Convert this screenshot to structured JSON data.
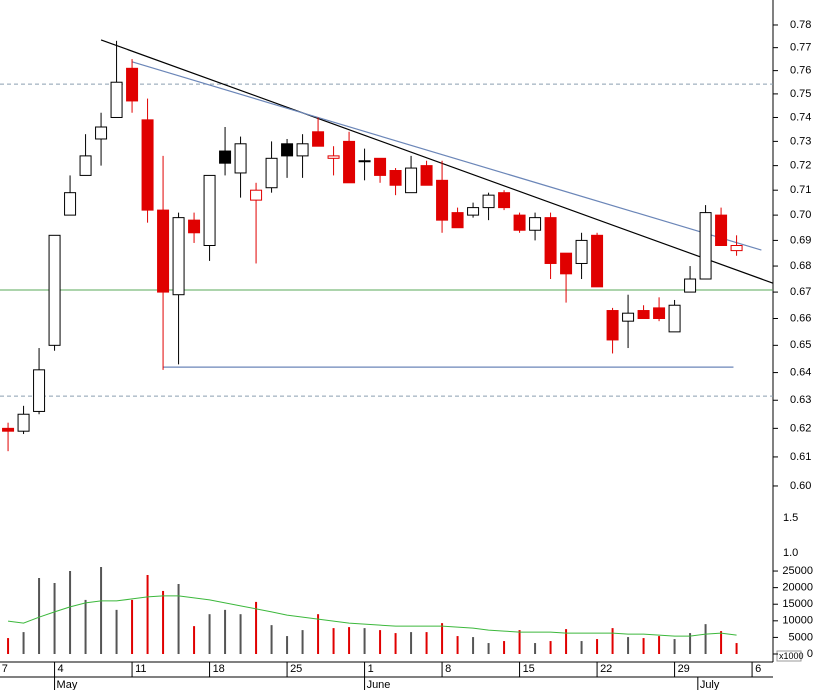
{
  "chart_data": {
    "type": "candlestick",
    "log_scale": true,
    "open": [
      0.62,
      0.619,
      0.626,
      0.65,
      0.7,
      0.716,
      0.731,
      0.74,
      0.761,
      0.739,
      0.702,
      0.669,
      0.698,
      0.688,
      0.721,
      0.717,
      0.706,
      0.711,
      0.724,
      0.724,
      0.734,
      0.724,
      0.73,
      0.722,
      0.723,
      0.718,
      0.709,
      0.72,
      0.714,
      0.701,
      0.7,
      0.703,
      0.709,
      0.7,
      0.694,
      0.699,
      0.685,
      0.681,
      0.692,
      0.663,
      0.659,
      0.663,
      0.664,
      0.655,
      0.67,
      0.675,
      0.7,
      0.686
    ],
    "high": [
      0.622,
      0.628,
      0.649,
      0.692,
      0.716,
      0.733,
      0.742,
      0.773,
      0.765,
      0.748,
      0.724,
      0.701,
      0.701,
      0.716,
      0.736,
      0.732,
      0.713,
      0.73,
      0.731,
      0.733,
      0.74,
      0.728,
      0.734,
      0.727,
      0.723,
      0.719,
      0.724,
      0.722,
      0.722,
      0.703,
      0.705,
      0.709,
      0.71,
      0.701,
      0.701,
      0.701,
      0.685,
      0.693,
      0.693,
      0.664,
      0.669,
      0.665,
      0.668,
      0.667,
      0.68,
      0.704,
      0.703,
      0.692
    ],
    "low": [
      0.612,
      0.618,
      0.625,
      0.648,
      0.7,
      0.716,
      0.72,
      0.74,
      0.742,
      0.697,
      0.641,
      0.643,
      0.689,
      0.682,
      0.716,
      0.707,
      0.681,
      0.709,
      0.715,
      0.715,
      0.728,
      0.716,
      0.713,
      0.714,
      0.713,
      0.708,
      0.709,
      0.712,
      0.693,
      0.695,
      0.699,
      0.698,
      0.702,
      0.693,
      0.69,
      0.675,
      0.666,
      0.675,
      0.672,
      0.647,
      0.649,
      0.66,
      0.659,
      0.655,
      0.67,
      0.675,
      0.688,
      0.684
    ],
    "close": [
      0.619,
      0.625,
      0.641,
      0.692,
      0.709,
      0.724,
      0.736,
      0.755,
      0.747,
      0.702,
      0.67,
      0.699,
      0.693,
      0.716,
      0.726,
      0.729,
      0.71,
      0.723,
      0.729,
      0.729,
      0.728,
      0.723,
      0.713,
      0.722,
      0.716,
      0.712,
      0.719,
      0.712,
      0.698,
      0.695,
      0.703,
      0.708,
      0.703,
      0.694,
      0.699,
      0.681,
      0.677,
      0.69,
      0.672,
      0.652,
      0.662,
      0.66,
      0.66,
      0.665,
      0.675,
      0.701,
      0.688,
      0.688
    ],
    "styles": [
      "d",
      "u",
      "u",
      "u",
      "u",
      "u",
      "u",
      "u",
      "d",
      "d",
      "d",
      "u",
      "d",
      "u",
      "k",
      "u",
      "h",
      "u",
      "k",
      "u",
      "d",
      "h",
      "d",
      "k",
      "d",
      "d",
      "u",
      "d",
      "d",
      "d",
      "u",
      "u",
      "d",
      "d",
      "u",
      "d",
      "d",
      "u",
      "d",
      "d",
      "u",
      "d",
      "d",
      "u",
      "u",
      "u",
      "d",
      "h"
    ],
    "style_colors": {
      "u": {
        "fill": "#ffffff",
        "stroke": "#000000",
        "volume": "#555555"
      },
      "d": {
        "fill": "#e00000",
        "stroke": "#e00000",
        "volume": "#e00000"
      },
      "k": {
        "fill": "#000000",
        "stroke": "#000000",
        "volume": "#555555"
      },
      "h": {
        "fill": "#ffffff",
        "stroke": "#e00000",
        "volume": "#e00000"
      }
    },
    "xlim": [
      -0.52,
      49.35
    ],
    "ylim": [
      0.59,
      0.79
    ],
    "yticks": [
      0.78,
      0.77,
      0.76,
      0.75,
      0.74,
      0.73,
      0.72,
      0.71,
      {
        "value": 0.7,
        "label": "0.70"
      },
      0.69,
      0.68,
      0.67,
      0.66,
      0.65,
      0.64,
      0.63,
      0.62,
      0.61,
      {
        "value": 0.6,
        "label": "0.60"
      }
    ],
    "extra_axis_labels": [
      "1.5",
      "1.0"
    ],
    "xticks": [
      {
        "value": -0.6,
        "label": "7"
      },
      {
        "value": 3,
        "label": "4"
      },
      {
        "value": 8,
        "label": "11"
      },
      {
        "value": 13,
        "label": "18"
      },
      {
        "value": 18,
        "label": "25"
      },
      {
        "value": 23,
        "label": "1"
      },
      {
        "value": 28,
        "label": "8"
      },
      {
        "value": 33,
        "label": "15"
      },
      {
        "value": 38,
        "label": "22"
      },
      {
        "value": 43,
        "label": "29"
      },
      {
        "value": 48,
        "label": "6"
      }
    ],
    "month_ticks": [
      {
        "value": 3,
        "label": "May"
      },
      {
        "value": 23,
        "label": "June"
      },
      {
        "value": 44.5,
        "label": "July"
      }
    ],
    "trend_lines": [
      {
        "x": [
          6,
          49.35
        ],
        "y": [
          0.7734,
          0.6734
        ],
        "color": "#000000"
      },
      {
        "x": [
          8,
          48.6
        ],
        "y": [
          0.7638,
          0.6862
        ],
        "color": "#6b86b8"
      },
      {
        "x": [
          10,
          46.8
        ],
        "y": [
          0.642,
          0.642
        ],
        "color": "#6b86b8"
      }
    ],
    "h_lines": [
      {
        "y": 0.7542,
        "color": "#8a9fb0",
        "dashed": true
      },
      {
        "y": 0.6315,
        "color": "#8a9fb0",
        "dashed": true
      },
      {
        "y": 0.6708,
        "color": "#58a858",
        "dashed": false
      }
    ],
    "volume": {
      "values": [
        4800,
        6600,
        22900,
        21400,
        25000,
        16300,
        26200,
        13300,
        16300,
        23800,
        19000,
        21100,
        8400,
        12000,
        13300,
        12000,
        15700,
        8700,
        5400,
        7200,
        12000,
        7800,
        8100,
        7800,
        7200,
        6300,
        6600,
        6600,
        9300,
        5400,
        5100,
        3300,
        3900,
        7200,
        3300,
        3900,
        7500,
        3900,
        4500,
        7800,
        5100,
        4800,
        5400,
        4500,
        6300,
        9000,
        6900,
        3300
      ],
      "average": [
        9900,
        9300,
        11100,
        12700,
        14200,
        15400,
        16000,
        16000,
        16600,
        17200,
        17500,
        17500,
        16900,
        16300,
        15400,
        14500,
        13600,
        12700,
        11700,
        11100,
        10500,
        9900,
        9300,
        9000,
        8700,
        8400,
        8400,
        8400,
        8400,
        8100,
        7800,
        7200,
        6900,
        6600,
        6600,
        6600,
        6300,
        6300,
        6300,
        6300,
        6000,
        6000,
        5700,
        5400,
        5400,
        6000,
        6300,
        5700
      ],
      "average_color": "#3cb83c",
      "ylim": [
        0,
        27000
      ],
      "yticks": [
        25000,
        20000,
        15000,
        10000,
        5000,
        0
      ],
      "unit_label": "x1000"
    }
  }
}
